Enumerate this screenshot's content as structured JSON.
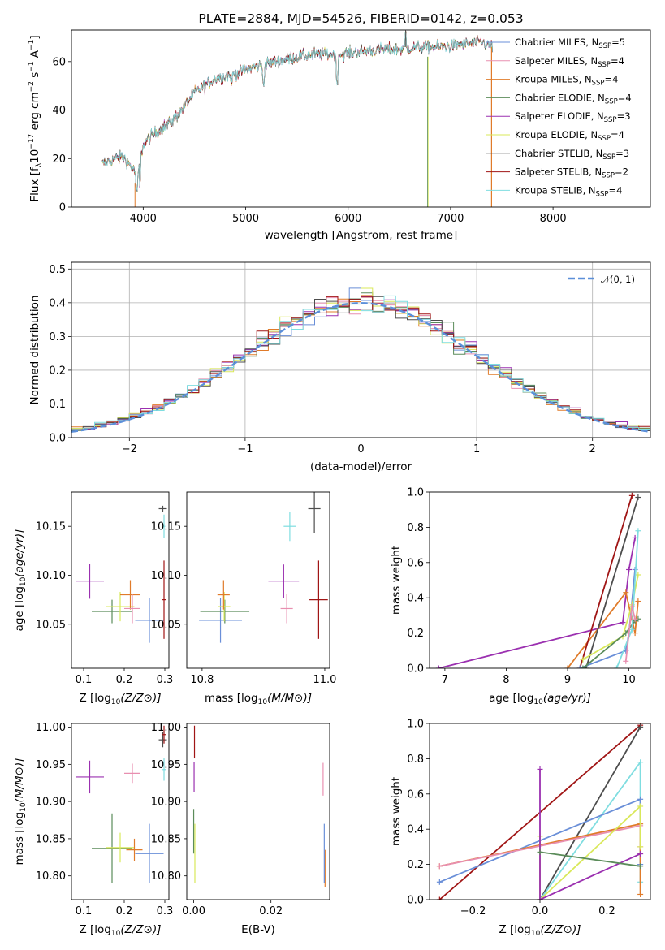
{
  "colors": {
    "chabrier_miles": "#6a8fd8",
    "salpeter_miles": "#e88fb0",
    "kroupa_miles": "#e07b2a",
    "chabrier_elodie": "#5b8c5a",
    "salpeter_elodie": "#9b30b0",
    "kroupa_elodie": "#d9e85a",
    "chabrier_stelib": "#4d4d4d",
    "salpeter_stelib": "#a01515",
    "kroupa_stelib": "#7fdde0",
    "normal_curve": "#5b8fd9",
    "grid": "#b0b0b0"
  },
  "chart_data": [
    {
      "id": "spectrum",
      "type": "line",
      "title": "PLATE=2884, MJD=54526, FIBERID=0142, z=0.053",
      "xlabel": "wavelength [Angstrom, rest frame]",
      "ylabel": "Flux [f_λ10^-17 erg cm^-2 s^-1 A^-1]",
      "xlim": [
        3300,
        8950
      ],
      "ylim": [
        0,
        73
      ],
      "xticks": [
        "4000",
        "5000",
        "6000",
        "7000",
        "8000"
      ],
      "yticks": [
        "0",
        "20",
        "40",
        "60"
      ],
      "grid": false,
      "legend_position": "right",
      "continuum": {
        "x": [
          3600,
          3800,
          3950,
          4000,
          4100,
          4300,
          4500,
          4700,
          4900,
          5100,
          5300,
          5500,
          5700,
          5900,
          6100,
          6300,
          6500,
          6700,
          6900,
          7100,
          7300,
          7400
        ],
        "y": [
          18,
          21,
          13,
          26,
          30,
          36,
          47,
          53,
          55,
          58,
          60,
          62,
          63,
          63,
          64,
          65,
          65,
          66,
          66,
          67,
          68,
          66
        ]
      },
      "series": [
        {
          "key": "chabrier_miles",
          "name": "Chabrier MILES, N_SSP=5",
          "label_main": "Chabrier MILES, N",
          "label_sub": "SSP",
          "label_tail": "=5"
        },
        {
          "key": "salpeter_miles",
          "name": "Salpeter MILES, N_SSP=4",
          "label_main": "Salpeter MILES, N",
          "label_sub": "SSP",
          "label_tail": "=4"
        },
        {
          "key": "kroupa_miles",
          "name": "Kroupa MILES, N_SSP=4",
          "label_main": "Kroupa MILES, N",
          "label_sub": "SSP",
          "label_tail": "=4"
        },
        {
          "key": "chabrier_elodie",
          "name": "Chabrier ELODIE, N_SSP=4",
          "label_main": "Chabrier ELODIE, N",
          "label_sub": "SSP",
          "label_tail": "=4"
        },
        {
          "key": "salpeter_elodie",
          "name": "Salpeter ELODIE, N_SSP=3",
          "label_main": "Salpeter ELODIE, N",
          "label_sub": "SSP",
          "label_tail": "=3"
        },
        {
          "key": "kroupa_elodie",
          "name": "Kroupa ELODIE, N_SSP=4",
          "label_main": "Kroupa ELODIE, N",
          "label_sub": "SSP",
          "label_tail": "=4"
        },
        {
          "key": "chabrier_stelib",
          "name": "Chabrier STELIB, N_SSP=3",
          "label_main": "Chabrier STELIB, N",
          "label_sub": "SSP",
          "label_tail": "=3"
        },
        {
          "key": "salpeter_stelib",
          "name": "Salpeter STELIB, N_SSP=2",
          "label_main": "Salpeter STELIB, N",
          "label_sub": "SSP",
          "label_tail": "=2"
        },
        {
          "key": "kroupa_stelib",
          "name": "Kroupa STELIB, N_SSP=4",
          "label_main": "Kroupa STELIB, N",
          "label_sub": "SSP",
          "label_tail": "=4"
        }
      ]
    },
    {
      "id": "residuals",
      "type": "bar",
      "xlabel": "(data-model)/error",
      "ylabel": "Normed distribution",
      "xlim": [
        -2.5,
        2.5
      ],
      "ylim": [
        0,
        0.52
      ],
      "xticks": [
        "−2",
        "−1",
        "0",
        "1",
        "2"
      ],
      "yticks": [
        "0.0",
        "0.1",
        "0.2",
        "0.3",
        "0.4",
        "0.5"
      ],
      "grid": true,
      "legend_position": "top-right",
      "normal_label": "𝒩(0, 1)",
      "bin_width": 0.1,
      "bin_start": -2.5
    },
    {
      "id": "age_vs_Z",
      "type": "scatter",
      "xlabel": "Z [log10(Z/Z⊙)]",
      "ylabel": "age [log10(age/yr)]",
      "xlim": [
        0.07,
        0.31
      ],
      "ylim": [
        10.005,
        10.185
      ],
      "xticks": [
        "0.1",
        "0.2",
        "0.3"
      ],
      "yticks": [
        "10.05",
        "10.10",
        "10.15"
      ],
      "points": [
        {
          "key": "salpeter_elodie",
          "x": 0.115,
          "y": 10.094,
          "xerr": 0.035,
          "yerr": 0.018
        },
        {
          "key": "chabrier_elodie",
          "x": 0.17,
          "y": 10.063,
          "xerr": 0.05,
          "yerr": 0.012
        },
        {
          "key": "kroupa_elodie",
          "x": 0.19,
          "y": 10.068,
          "xerr": 0.035,
          "yerr": 0.015
        },
        {
          "key": "kroupa_miles",
          "x": 0.215,
          "y": 10.08,
          "xerr": 0.025,
          "yerr": 0.015
        },
        {
          "key": "salpeter_miles",
          "x": 0.22,
          "y": 10.066,
          "xerr": 0.02,
          "yerr": 0.015
        },
        {
          "key": "chabrier_miles",
          "x": 0.262,
          "y": 10.054,
          "xerr": 0.035,
          "yerr": 0.023
        },
        {
          "key": "chabrier_stelib",
          "x": 0.295,
          "y": 10.168,
          "xerr": 0.01,
          "yerr": 0.003
        },
        {
          "key": "salpeter_stelib",
          "x": 0.298,
          "y": 10.075,
          "xerr": 0.004,
          "yerr": 0.04
        },
        {
          "key": "kroupa_stelib",
          "x": 0.298,
          "y": 10.15,
          "xerr": 0.003,
          "yerr": 0.012
        }
      ]
    },
    {
      "id": "age_vs_mass",
      "type": "scatter",
      "xlabel": "mass [log10(M/M⊙)]",
      "ylabel": "",
      "xlim": [
        10.775,
        11.008
      ],
      "ylim": [
        10.005,
        10.185
      ],
      "xticks": [
        "10.8",
        "11.0"
      ],
      "yticks": [
        "10.05",
        "10.10",
        "10.15"
      ],
      "points": [
        {
          "key": "chabrier_miles",
          "x": 10.83,
          "y": 10.054,
          "xerr": 0.035,
          "yerr": 0.023
        },
        {
          "key": "chabrier_elodie",
          "x": 10.837,
          "y": 10.063,
          "xerr": 0.04,
          "yerr": 0.012
        },
        {
          "key": "kroupa_elodie",
          "x": 10.836,
          "y": 10.068,
          "xerr": 0.01,
          "yerr": 0.015
        },
        {
          "key": "kroupa_miles",
          "x": 10.835,
          "y": 10.08,
          "xerr": 0.01,
          "yerr": 0.015
        },
        {
          "key": "salpeter_elodie",
          "x": 10.933,
          "y": 10.094,
          "xerr": 0.025,
          "yerr": 0.017
        },
        {
          "key": "salpeter_miles",
          "x": 10.938,
          "y": 10.066,
          "xerr": 0.01,
          "yerr": 0.015
        },
        {
          "key": "kroupa_stelib",
          "x": 10.943,
          "y": 10.15,
          "xerr": 0.01,
          "yerr": 0.015
        },
        {
          "key": "chabrier_stelib",
          "x": 10.983,
          "y": 10.168,
          "xerr": 0.01,
          "yerr": 0.025
        },
        {
          "key": "salpeter_stelib",
          "x": 10.99,
          "y": 10.075,
          "xerr": 0.015,
          "yerr": 0.04
        }
      ]
    },
    {
      "id": "weight_vs_age",
      "type": "line",
      "xlabel": "age [log10(age/yr)]",
      "ylabel": "mass weight",
      "xlim": [
        6.75,
        10.35
      ],
      "ylim": [
        0,
        1.0
      ],
      "xticks": [
        "7",
        "8",
        "9",
        "10"
      ],
      "yticks": [
        "0.0",
        "0.2",
        "0.4",
        "0.6",
        "0.8",
        "1.0"
      ],
      "series": [
        {
          "key": "salpeter_elodie",
          "x": [
            6.9,
            9.9,
            10.0,
            10.1
          ],
          "y": [
            0.0,
            0.26,
            0.56,
            0.74
          ]
        },
        {
          "key": "kroupa_miles",
          "x": [
            9.0,
            9.95,
            10.1,
            10.15
          ],
          "y": [
            0.0,
            0.43,
            0.2,
            0.38
          ]
        },
        {
          "key": "salpeter_stelib",
          "x": [
            9.2,
            10.05
          ],
          "y": [
            0.0,
            0.98
          ]
        },
        {
          "key": "chabrier_stelib",
          "x": [
            9.3,
            10.15
          ],
          "y": [
            0.0,
            0.97
          ]
        },
        {
          "key": "chabrier_miles",
          "x": [
            9.2,
            9.95,
            10.0,
            10.1
          ],
          "y": [
            0.0,
            0.1,
            0.2,
            0.56
          ]
        },
        {
          "key": "kroupa_elodie",
          "x": [
            9.25,
            9.9,
            10.05,
            10.15
          ],
          "y": [
            0.05,
            0.18,
            0.36,
            0.53
          ]
        },
        {
          "key": "chabrier_elodie",
          "x": [
            9.25,
            9.95,
            10.1,
            10.15
          ],
          "y": [
            0.0,
            0.2,
            0.27,
            0.28
          ]
        },
        {
          "key": "kroupa_stelib",
          "x": [
            9.8,
            10.05,
            10.15
          ],
          "y": [
            0.0,
            0.22,
            0.78
          ]
        },
        {
          "key": "salpeter_miles",
          "x": [
            9.95,
            10.05,
            10.1
          ],
          "y": [
            0.04,
            0.35,
            0.28
          ]
        }
      ]
    },
    {
      "id": "mass_vs_Z",
      "type": "scatter",
      "xlabel": "Z [log10(Z/Z⊙)]",
      "ylabel": "mass [log10(M/M⊙)]",
      "xlim": [
        0.07,
        0.31
      ],
      "ylim": [
        10.768,
        11.005
      ],
      "xticks": [
        "0.1",
        "0.2",
        "0.3"
      ],
      "yticks": [
        "10.80",
        "10.85",
        "10.90",
        "10.95",
        "11.00"
      ],
      "points": [
        {
          "key": "salpeter_elodie",
          "x": 0.115,
          "y": 10.933,
          "xerr": 0.035,
          "yerr": 0.022
        },
        {
          "key": "chabrier_elodie",
          "x": 0.17,
          "y": 10.837,
          "xerr": 0.05,
          "yerr": 0.047
        },
        {
          "key": "kroupa_elodie",
          "x": 0.19,
          "y": 10.838,
          "xerr": 0.035,
          "yerr": 0.02
        },
        {
          "key": "kroupa_miles",
          "x": 0.225,
          "y": 10.835,
          "xerr": 0.02,
          "yerr": 0.015
        },
        {
          "key": "salpeter_miles",
          "x": 0.22,
          "y": 10.938,
          "xerr": 0.02,
          "yerr": 0.013
        },
        {
          "key": "chabrier_miles",
          "x": 0.262,
          "y": 10.83,
          "xerr": 0.035,
          "yerr": 0.04
        },
        {
          "key": "chabrier_stelib",
          "x": 0.295,
          "y": 10.983,
          "xerr": 0.01,
          "yerr": 0.01
        },
        {
          "key": "salpeter_stelib",
          "x": 0.298,
          "y": 10.99,
          "xerr": 0.004,
          "yerr": 0.012
        },
        {
          "key": "kroupa_stelib",
          "x": 0.298,
          "y": 10.943,
          "xerr": 0.004,
          "yerr": 0.015
        }
      ]
    },
    {
      "id": "mass_vs_EBV",
      "type": "scatter",
      "xlabel": "E(B-V)",
      "ylabel": "",
      "xlim": [
        -0.0018,
        0.0352
      ],
      "ylim": [
        10.768,
        11.005
      ],
      "xticks": [
        "0.00",
        "0.02"
      ],
      "yticks": [
        "10.80",
        "10.85",
        "10.90",
        "10.95",
        "11.00"
      ],
      "points": [
        {
          "key": "salpeter_stelib",
          "x": 0.0002,
          "y": 10.98,
          "xerr": 0,
          "yerr": 0.022
        },
        {
          "key": "salpeter_elodie",
          "x": 0.0001,
          "y": 10.933,
          "xerr": 0,
          "yerr": 0.02
        },
        {
          "key": "chabrier_elodie",
          "x": 0.0,
          "y": 10.86,
          "xerr": 0,
          "yerr": 0.03
        },
        {
          "key": "kroupa_elodie",
          "x": 0.0003,
          "y": 10.83,
          "xerr": 0,
          "yerr": 0.04
        },
        {
          "key": "salpeter_miles",
          "x": 0.0335,
          "y": 10.93,
          "xerr": 0,
          "yerr": 0.022
        },
        {
          "key": "kroupa_miles",
          "x": 0.034,
          "y": 10.81,
          "xerr": 0,
          "yerr": 0.025
        },
        {
          "key": "chabrier_miles",
          "x": 0.0338,
          "y": 10.83,
          "xerr": 0,
          "yerr": 0.04
        }
      ]
    },
    {
      "id": "weight_vs_Z",
      "type": "line",
      "xlabel": "Z [log10(Z/Z⊙)]",
      "ylabel": "mass weight",
      "xlim": [
        -0.33,
        0.33
      ],
      "ylim": [
        0,
        1.0
      ],
      "xticks": [
        "−0.2",
        "0.0",
        "0.2"
      ],
      "yticks": [
        "0.0",
        "0.2",
        "0.4",
        "0.6",
        "0.8",
        "1.0"
      ],
      "series": [
        {
          "key": "salpeter_stelib",
          "x": [
            -0.3,
            0.3
          ],
          "y": [
            0.0,
            0.99
          ]
        },
        {
          "key": "chabrier_stelib",
          "x": [
            0.0,
            0.3
          ],
          "y": [
            0.0,
            0.98
          ]
        },
        {
          "key": "kroupa_stelib",
          "x": [
            0.0,
            0.3,
            0.3,
            0.3
          ],
          "y": [
            0.0,
            0.78,
            0.2,
            0.1
          ]
        },
        {
          "key": "chabrier_miles",
          "x": [
            -0.3,
            0.3,
            0.3
          ],
          "y": [
            0.1,
            0.57,
            0.2
          ]
        },
        {
          "key": "kroupa_miles",
          "x": [
            -0.3,
            0.3,
            0.3
          ],
          "y": [
            0.19,
            0.43,
            0.03
          ]
        },
        {
          "key": "salpeter_miles",
          "x": [
            -0.3,
            0.3,
            0.3
          ],
          "y": [
            0.19,
            0.42,
            0.3
          ]
        },
        {
          "key": "kroupa_elodie",
          "x": [
            0.0,
            0.0,
            0.3,
            0.3
          ],
          "y": [
            0.36,
            0.0,
            0.53,
            0.3
          ]
        },
        {
          "key": "salpeter_elodie",
          "x": [
            0.0,
            0.0,
            0.3
          ],
          "y": [
            0.74,
            0.0,
            0.26
          ]
        },
        {
          "key": "chabrier_elodie",
          "x": [
            0.0,
            0.3
          ],
          "y": [
            0.27,
            0.19
          ]
        }
      ]
    }
  ]
}
